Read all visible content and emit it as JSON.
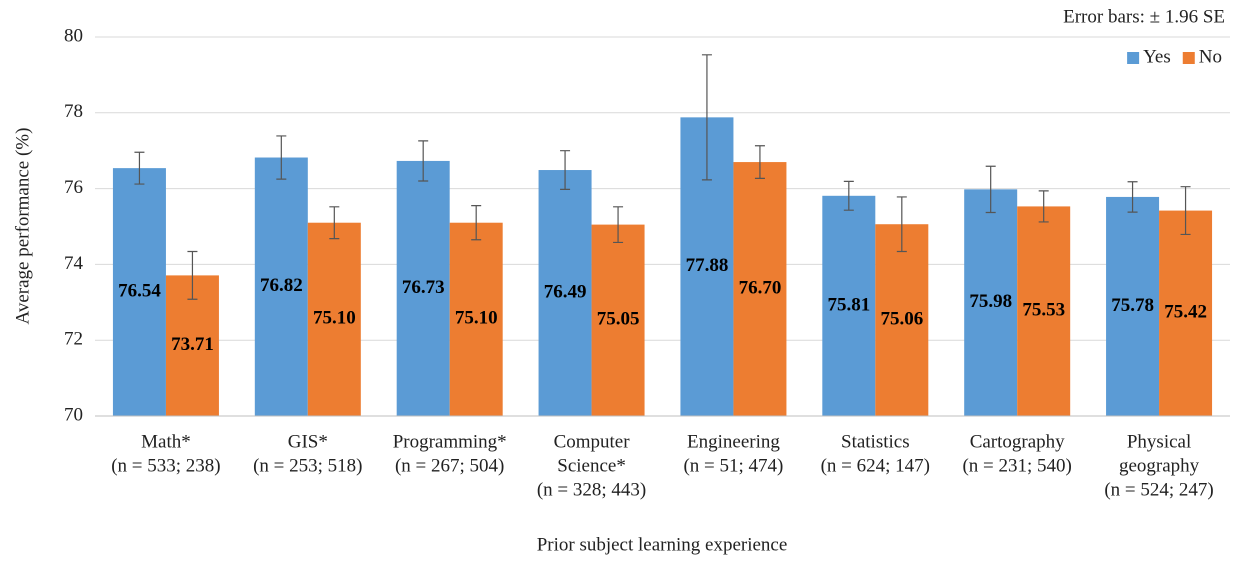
{
  "chart_data": {
    "type": "bar",
    "annotation": "Error bars: ± 1.96 SE",
    "y_label": "Average performance (%)",
    "x_label": "Prior subject learning experience",
    "categories": [
      [
        "Math*",
        "(n = 533; 238)"
      ],
      [
        "GIS*",
        "(n = 253; 518)"
      ],
      [
        "Programming*",
        "(n = 267; 504)"
      ],
      [
        "Computer",
        "Science*",
        "(n = 328; 443)"
      ],
      [
        "Engineering",
        "(n = 51; 474)"
      ],
      [
        "Statistics",
        "(n = 624; 147)"
      ],
      [
        "Cartography",
        "(n = 231; 540)"
      ],
      [
        "Physical",
        "geography",
        "(n = 524; 247)"
      ]
    ],
    "series": [
      {
        "name": "Yes",
        "color": "#5b9bd5",
        "values": [
          76.54,
          76.82,
          76.73,
          76.49,
          77.88,
          75.81,
          75.98,
          75.78
        ],
        "value_labels": [
          "76.54",
          "76.82",
          "76.73",
          "76.49",
          "77.88",
          "75.81",
          "75.98",
          "75.78"
        ],
        "errors": [
          0.42,
          0.57,
          0.53,
          0.51,
          1.65,
          0.38,
          0.61,
          0.4
        ]
      },
      {
        "name": "No",
        "color": "#ed7d31",
        "values": [
          73.71,
          75.1,
          75.1,
          75.05,
          76.7,
          75.06,
          75.53,
          75.42
        ],
        "value_labels": [
          "73.71",
          "75.10",
          "75.10",
          "75.05",
          "76.70",
          "75.06",
          "75.53",
          "75.42"
        ],
        "errors": [
          0.63,
          0.42,
          0.45,
          0.47,
          0.43,
          0.72,
          0.41,
          0.63
        ]
      }
    ],
    "ylim": [
      70,
      80
    ],
    "yticks": [
      70,
      72,
      74,
      76,
      78,
      80
    ],
    "grid": true,
    "legend": "top-right"
  }
}
